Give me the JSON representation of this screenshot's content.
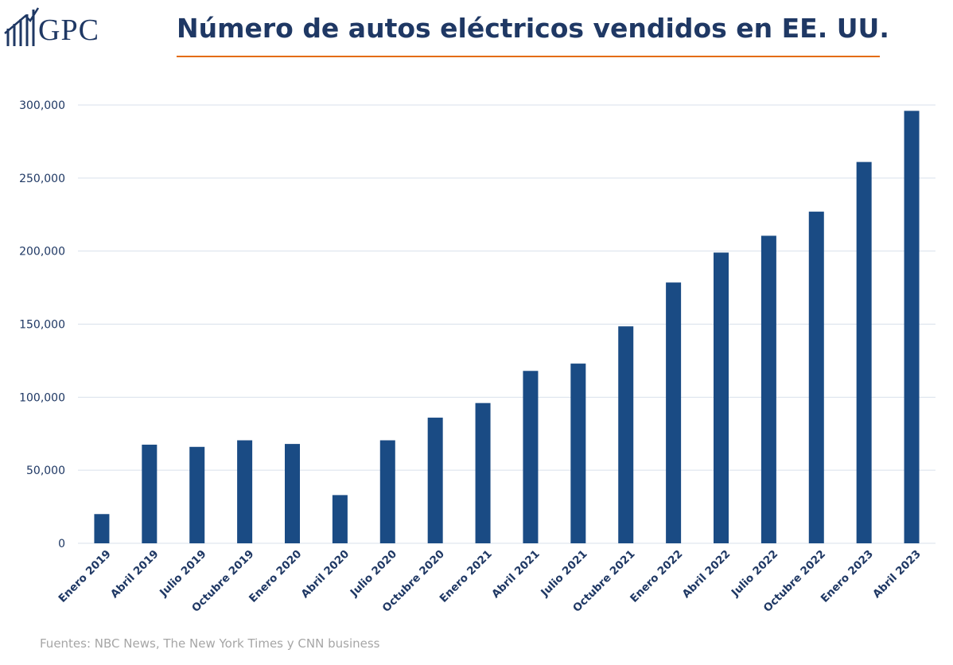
{
  "header": {
    "logo_text": "GPC",
    "title": "Número de autos eléctricos vendidos en EE. UU."
  },
  "footer": {
    "source": "Fuentes: NBC News, The New York Times y CNN business"
  },
  "colors": {
    "bar": "#1a4b84",
    "title": "#1f3864",
    "rule": "#e46c0a",
    "grid": "#d9e1eb",
    "axis_text": "#1f3864"
  },
  "chart_data": {
    "type": "bar",
    "title": "Número de autos eléctricos vendidos en EE. UU.",
    "xlabel": "",
    "ylabel": "",
    "ylim": [
      0,
      300000
    ],
    "y_ticks": [
      0,
      50000,
      100000,
      150000,
      200000,
      250000,
      300000
    ],
    "y_tick_labels": [
      "0",
      "50,000",
      "100,000",
      "150,000",
      "200,000",
      "250,000",
      "300,000"
    ],
    "grid": true,
    "legend": "none",
    "categories": [
      "Enero 2019",
      "Abril 2019",
      "Julio  2019",
      "Octubre 2019",
      "Enero 2020",
      "Abril 2020",
      "Julio  2020",
      "Octubre 2020",
      "Enero 2021",
      "Abril 2021",
      "Julio  2021",
      "Octubre 2021",
      "Enero 2022",
      "Abril 2022",
      "Julio  2022",
      "Octubre 2022",
      "Enero 2023",
      "Abril 2023"
    ],
    "values": [
      20000,
      67500,
      66000,
      70500,
      68000,
      33000,
      70500,
      86000,
      96000,
      118000,
      123000,
      148500,
      178500,
      199000,
      210500,
      227000,
      261000,
      296000
    ]
  }
}
